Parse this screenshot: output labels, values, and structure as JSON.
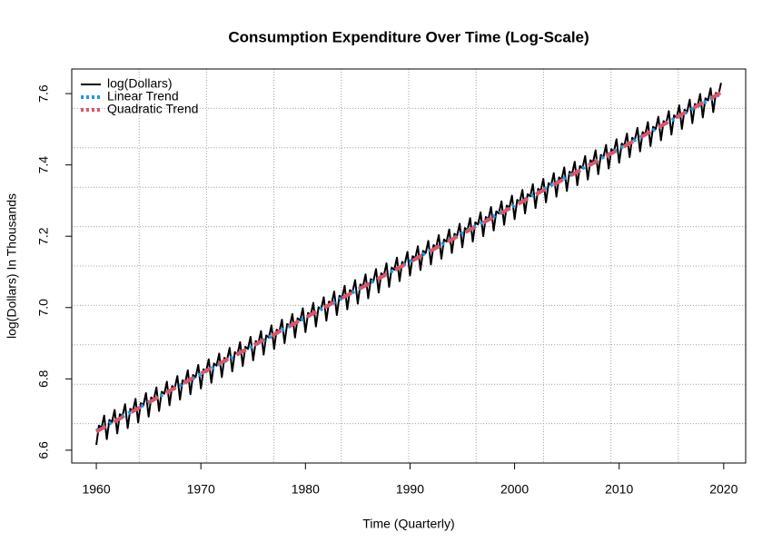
{
  "chart_data": {
    "type": "line",
    "title": "Consumption Expenditure Over Time (Log-Scale)",
    "x_label": "Time (Quarterly)",
    "y_label": "log(Dollars) In Thousands",
    "xlim": [
      1957.65,
      2022.1
    ],
    "ylim": [
      6.564,
      7.669
    ],
    "xticks": [
      1960,
      1970,
      1980,
      1990,
      2000,
      2010,
      2020
    ],
    "yticks": [
      6.6,
      6.8,
      {
        "value": 7,
        "label": "7.0"
      },
      7.2,
      7.4,
      7.6
    ],
    "grid": true,
    "grid_divisions": 10,
    "legend": "topleft",
    "series": [
      {
        "name": "log(Dollars)",
        "color": "#000000",
        "width": 2,
        "dash": "none",
        "x": [
          1960,
          1960.25,
          1960.5,
          1960.75,
          1961,
          1961.25,
          1961.5,
          1961.75,
          1962,
          1962.25,
          1962.5,
          1962.75,
          1963,
          1963.25,
          1963.5,
          1963.75,
          1964,
          1964.25,
          1964.5,
          1964.75,
          1965,
          1965.25,
          1965.5,
          1965.75,
          1966,
          1966.25,
          1966.5,
          1966.75,
          1967,
          1967.25,
          1967.5,
          1967.75,
          1968,
          1968.25,
          1968.5,
          1968.75,
          1969,
          1969.25,
          1969.5,
          1969.75,
          1970,
          1970.25,
          1970.5,
          1970.75,
          1971,
          1971.25,
          1971.5,
          1971.75,
          1972,
          1972.25,
          1972.5,
          1972.75,
          1973,
          1973.25,
          1973.5,
          1973.75,
          1974,
          1974.25,
          1974.5,
          1974.75,
          1975,
          1975.25,
          1975.5,
          1975.75,
          1976,
          1976.25,
          1976.5,
          1976.75,
          1977,
          1977.25,
          1977.5,
          1977.75,
          1978,
          1978.25,
          1978.5,
          1978.75,
          1979,
          1979.25,
          1979.5,
          1979.75,
          1980,
          1980.25,
          1980.5,
          1980.75,
          1981,
          1981.25,
          1981.5,
          1981.75,
          1982,
          1982.25,
          1982.5,
          1982.75,
          1983,
          1983.25,
          1983.5,
          1983.75,
          1984,
          1984.25,
          1984.5,
          1984.75,
          1985,
          1985.25,
          1985.5,
          1985.75,
          1986,
          1986.25,
          1986.5,
          1986.75,
          1987,
          1987.25,
          1987.5,
          1987.75,
          1988,
          1988.25,
          1988.5,
          1988.75,
          1989,
          1989.25,
          1989.5,
          1989.75,
          1990,
          1990.25,
          1990.5,
          1990.75,
          1991,
          1991.25,
          1991.5,
          1991.75,
          1992,
          1992.25,
          1992.5,
          1992.75,
          1993,
          1993.25,
          1993.5,
          1993.75,
          1994,
          1994.25,
          1994.5,
          1994.75,
          1995,
          1995.25,
          1995.5,
          1995.75,
          1996,
          1996.25,
          1996.5,
          1996.75,
          1997,
          1997.25,
          1997.5,
          1997.75,
          1998,
          1998.25,
          1998.5,
          1998.75,
          1999,
          1999.25,
          1999.5,
          1999.75,
          2000,
          2000.25,
          2000.5,
          2000.75,
          2001,
          2001.25,
          2001.5,
          2001.75,
          2002,
          2002.25,
          2002.5,
          2002.75,
          2003,
          2003.25,
          2003.5,
          2003.75,
          2004,
          2004.25,
          2004.5,
          2004.75,
          2005,
          2005.25,
          2005.5,
          2005.75,
          2006,
          2006.25,
          2006.5,
          2006.75,
          2007,
          2007.25,
          2007.5,
          2007.75,
          2008,
          2008.25,
          2008.5,
          2008.75,
          2009,
          2009.25,
          2009.5,
          2009.75,
          2010,
          2010.25,
          2010.5,
          2010.75,
          2011,
          2011.25,
          2011.5,
          2011.75,
          2012,
          2012.25,
          2012.5,
          2012.75,
          2013,
          2013.25,
          2013.5,
          2013.75,
          2014,
          2014.25,
          2014.5,
          2014.75,
          2015,
          2015.25,
          2015.5,
          2015.75,
          2016,
          2016.25,
          2016.5,
          2016.75,
          2017,
          2017.25,
          2017.5,
          2017.75,
          2018,
          2018.25,
          2018.5,
          2018.75,
          2019,
          2019.25,
          2019.5,
          2019.75
        ],
        "values": [
          6.615,
          6.669,
          6.663,
          6.697,
          6.631,
          6.685,
          6.679,
          6.713,
          6.647,
          6.701,
          6.695,
          6.729,
          6.662,
          6.716,
          6.71,
          6.744,
          6.678,
          6.732,
          6.726,
          6.76,
          6.694,
          6.748,
          6.742,
          6.776,
          6.71,
          6.764,
          6.758,
          6.792,
          6.726,
          6.78,
          6.774,
          6.808,
          6.742,
          6.796,
          6.79,
          6.824,
          6.757,
          6.811,
          6.805,
          6.839,
          6.773,
          6.827,
          6.821,
          6.855,
          6.789,
          6.843,
          6.837,
          6.871,
          6.805,
          6.859,
          6.853,
          6.887,
          6.821,
          6.875,
          6.869,
          6.903,
          6.836,
          6.89,
          6.884,
          6.918,
          6.852,
          6.906,
          6.9,
          6.934,
          6.868,
          6.922,
          6.916,
          6.95,
          6.884,
          6.938,
          6.932,
          6.966,
          6.9,
          6.954,
          6.948,
          6.982,
          6.916,
          6.97,
          6.964,
          6.998,
          6.931,
          6.985,
          6.979,
          7.013,
          6.947,
          7.001,
          6.995,
          7.029,
          6.963,
          7.017,
          7.011,
          7.045,
          6.979,
          7.033,
          7.027,
          7.061,
          6.995,
          7.049,
          7.043,
          7.077,
          7.011,
          7.065,
          7.059,
          7.093,
          7.026,
          7.08,
          7.074,
          7.108,
          7.042,
          7.096,
          7.09,
          7.124,
          7.058,
          7.112,
          7.106,
          7.14,
          7.074,
          7.128,
          7.122,
          7.156,
          7.09,
          7.144,
          7.138,
          7.172,
          7.105,
          7.159,
          7.153,
          7.187,
          7.121,
          7.175,
          7.169,
          7.203,
          7.137,
          7.191,
          7.185,
          7.219,
          7.153,
          7.207,
          7.201,
          7.235,
          7.169,
          7.223,
          7.217,
          7.251,
          7.185,
          7.239,
          7.233,
          7.267,
          7.2,
          7.254,
          7.248,
          7.282,
          7.216,
          7.27,
          7.264,
          7.298,
          7.232,
          7.286,
          7.28,
          7.314,
          7.248,
          7.302,
          7.296,
          7.33,
          7.264,
          7.318,
          7.312,
          7.346,
          7.279,
          7.333,
          7.327,
          7.361,
          7.295,
          7.349,
          7.343,
          7.377,
          7.311,
          7.365,
          7.359,
          7.393,
          7.327,
          7.381,
          7.375,
          7.409,
          7.343,
          7.397,
          7.391,
          7.425,
          7.359,
          7.413,
          7.407,
          7.441,
          7.374,
          7.428,
          7.422,
          7.456,
          7.39,
          7.444,
          7.438,
          7.472,
          7.406,
          7.46,
          7.454,
          7.488,
          7.422,
          7.476,
          7.47,
          7.504,
          7.438,
          7.492,
          7.486,
          7.52,
          7.453,
          7.507,
          7.501,
          7.535,
          7.469,
          7.523,
          7.517,
          7.551,
          7.485,
          7.539,
          7.533,
          7.567,
          7.501,
          7.555,
          7.549,
          7.583,
          7.517,
          7.571,
          7.565,
          7.599,
          7.533,
          7.587,
          7.581,
          7.615,
          7.548,
          7.602,
          7.596,
          7.63
        ]
      },
      {
        "name": "Linear Trend",
        "color": "#2297E6",
        "width": 4,
        "dash": "3 5",
        "x": [
          1960,
          2019.75
        ],
        "values": [
          6.655,
          7.6
        ]
      },
      {
        "name": "Quadratic Trend",
        "color": "#DF536B",
        "width": 4,
        "dash": "12 10",
        "x": [
          1960,
          1970,
          1980,
          1990,
          2000,
          2010,
          2019.75
        ],
        "values": [
          6.652,
          6.815,
          6.972,
          7.128,
          7.285,
          7.444,
          7.603
        ]
      }
    ]
  }
}
